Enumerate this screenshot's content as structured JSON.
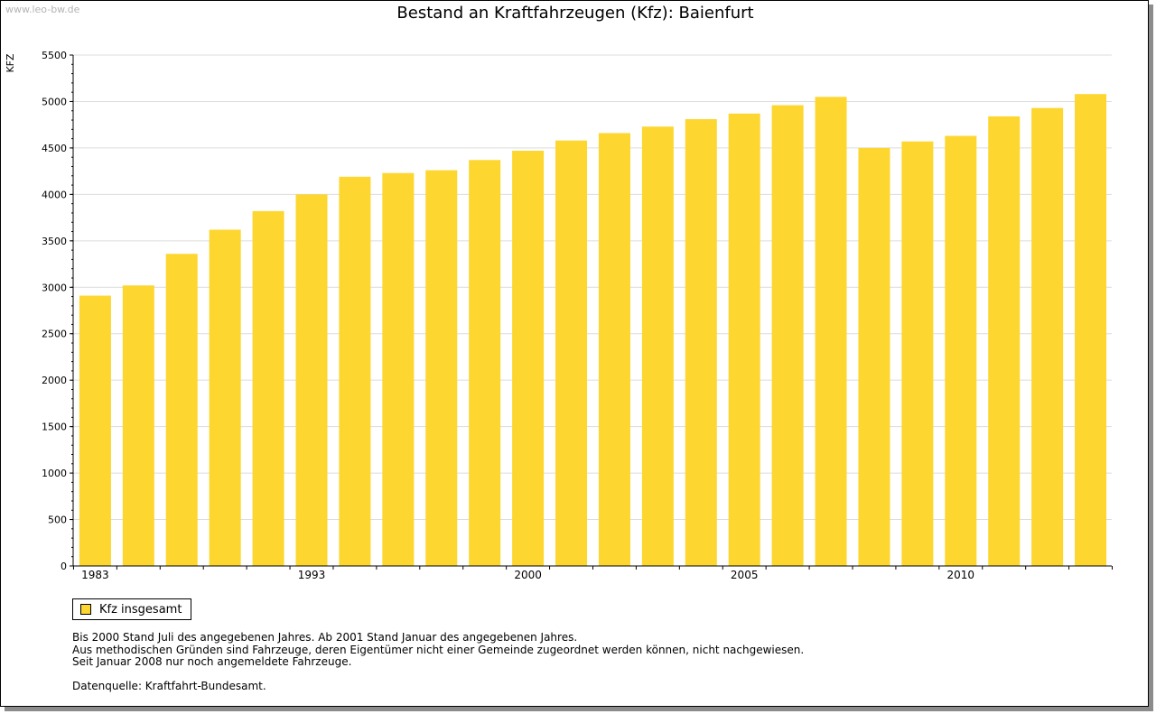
{
  "watermark": "www.leo-bw.de",
  "colors": {
    "bar": "#fdd630",
    "grid": "#dcdcdc",
    "axis": "#000000"
  },
  "notes": [
    "Bis 2000 Stand Juli des angegebenen Jahres. Ab 2001 Stand Januar des angegebenen Jahres.",
    "Aus methodischen Gründen sind Fahrzeuge, deren Eigentümer nicht einer Gemeinde zugeordnet werden können, nicht nachgewiesen.",
    "Seit Januar 2008 nur noch angemeldete Fahrzeuge."
  ],
  "source": "Datenquelle: Kraftfahrt-Bundesamt.",
  "chart_data": {
    "type": "bar",
    "title": "Bestand an Kraftfahrzeugen (Kfz): Baienfurt",
    "ylabel": "KFZ",
    "xlabel": "",
    "ylim": [
      0,
      5500
    ],
    "yticks": [
      0,
      500,
      1000,
      1500,
      2000,
      2500,
      3000,
      3500,
      4000,
      4500,
      5000,
      5500
    ],
    "grid": true,
    "legend_position": "bottom-left",
    "categories": [
      "1983",
      "",
      "",
      "",
      "",
      "1993",
      "",
      "",
      "",
      "",
      "2000",
      "",
      "",
      "",
      "",
      "2005",
      "",
      "",
      "",
      "",
      "2010",
      "",
      "",
      ""
    ],
    "series": [
      {
        "name": "Kfz insgesamt",
        "values": [
          2910,
          3020,
          3360,
          3620,
          3820,
          4000,
          4190,
          4230,
          4260,
          4370,
          4470,
          4580,
          4660,
          4730,
          4810,
          4870,
          4960,
          5050,
          4500,
          4570,
          4630,
          4840,
          4930,
          5080
        ]
      }
    ]
  }
}
